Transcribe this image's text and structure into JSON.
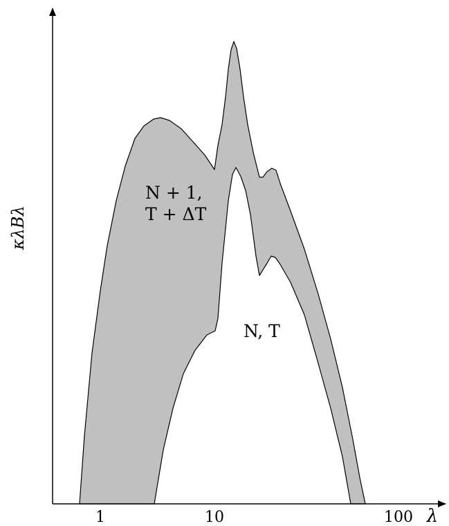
{
  "figure": {
    "y_axis_label": "κλBλ",
    "x_axis_symbol": "λ",
    "x_scale": "log",
    "x_tick_labels": [
      "1",
      "10",
      "100"
    ],
    "colors": {
      "band_fill": "#c0c0c0",
      "lines": "#000000",
      "background": "#ffffff"
    },
    "band_label_line1": "N + 1,",
    "band_label_line2": "T + ΔT",
    "curve_label": "N, T"
  }
}
